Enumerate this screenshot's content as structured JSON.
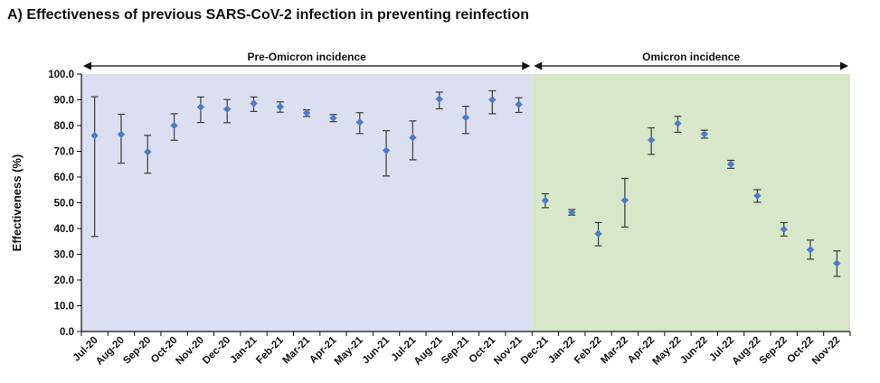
{
  "chart_data": {
    "type": "scatter",
    "title": "A) Effectiveness of previous SARS-CoV-2 infection in preventing reinfection",
    "xlabel": "",
    "ylabel": "Effectiveness (%)",
    "ylim": [
      0,
      100
    ],
    "yticks": [
      "0.0",
      "10.0",
      "20.0",
      "30.0",
      "40.0",
      "50.0",
      "60.0",
      "70.0",
      "80.0",
      "90.0",
      "100.0"
    ],
    "grid": false,
    "categories": [
      "Jul-20",
      "Aug-20",
      "Sep-20",
      "Oct-20",
      "Nov-20",
      "Dec-20",
      "Jan-21",
      "Feb-21",
      "Mar-21",
      "Apr-21",
      "May-21",
      "Jun-21",
      "Jul-21",
      "Aug-21",
      "Sep-21",
      "Oct-21",
      "Nov-21",
      "Dec-21",
      "Jan-22",
      "Feb-22",
      "Mar-22",
      "Apr-22",
      "May-22",
      "Jun-22",
      "Jul-22",
      "Aug-22",
      "Sep-22",
      "Oct-22",
      "Nov-22"
    ],
    "series": [
      {
        "name": "Effectiveness",
        "values": [
          76.1,
          76.6,
          69.8,
          80.0,
          87.2,
          86.4,
          88.6,
          87.3,
          84.9,
          82.9,
          81.3,
          70.3,
          75.3,
          90.3,
          83.1,
          90.0,
          88.2,
          50.9,
          46.3,
          38.0,
          51.0,
          74.4,
          80.8,
          76.7,
          65.0,
          52.7,
          39.7,
          31.8,
          26.5
        ],
        "lower": [
          36.9,
          65.4,
          61.5,
          74.3,
          81.2,
          81.1,
          85.5,
          85.2,
          83.5,
          81.5,
          76.9,
          60.4,
          66.7,
          86.5,
          76.9,
          84.6,
          85.1,
          48.1,
          45.2,
          33.3,
          40.6,
          68.8,
          77.4,
          75.1,
          63.4,
          50.2,
          37.1,
          28.1,
          21.4
        ],
        "upper": [
          91.2,
          84.4,
          76.2,
          84.6,
          91.1,
          90.1,
          91.1,
          89.2,
          86.1,
          84.3,
          85.0,
          78.0,
          81.8,
          93.0,
          87.5,
          93.5,
          90.8,
          53.5,
          47.4,
          42.3,
          59.5,
          79.1,
          83.6,
          78.2,
          66.5,
          55.1,
          42.3,
          35.5,
          31.3
        ]
      }
    ],
    "periods": [
      {
        "label": "Pre-Omicron incidence",
        "from": "Jul-20",
        "to": "Nov-21",
        "color": "#dcdff2"
      },
      {
        "label": "Omicron incidence",
        "from": "Dec-21",
        "to": "Nov-22",
        "color": "#d8e6c9"
      }
    ],
    "colors": {
      "marker": "#4f7cc2",
      "errorbar": "#3a3a3a",
      "axis": "#111111"
    }
  }
}
